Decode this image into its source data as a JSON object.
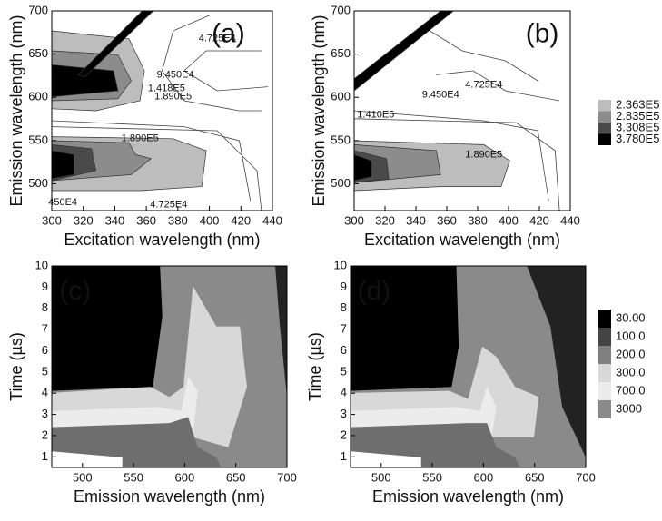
{
  "chart_data": [
    {
      "type": "contour",
      "panel_label": "(a)",
      "x_label": "Excitation wavelength (nm)",
      "y_label": "Emission wavelength (nm)",
      "xlim": [
        300,
        440
      ],
      "xticks": [
        300,
        320,
        340,
        360,
        380,
        400,
        420,
        440
      ],
      "ylim": [
        469,
        700
      ],
      "yticks": [
        500,
        550,
        600,
        650,
        700
      ],
      "contour_labels": [
        "4.725E4",
        "9.450E4",
        "1.418E5",
        "1.890E5",
        "1.890E5",
        "450E4",
        "4.725E4"
      ]
    },
    {
      "type": "contour",
      "panel_label": "(b)",
      "x_label": "Excitation wavelength (nm)",
      "y_label": "Emission wavelength (nm)",
      "xlim": [
        300,
        440
      ],
      "xticks": [
        300,
        320,
        340,
        360,
        380,
        400,
        420,
        440
      ],
      "ylim": [
        469,
        700
      ],
      "yticks": [
        500,
        550,
        600,
        650,
        700
      ],
      "contour_labels": [
        "4.725E4",
        "9.450E4",
        "1.410E5",
        "1.890E5"
      ],
      "colorbar": {
        "levels": [
          {
            "value": 236300,
            "label": "2.363E5"
          },
          {
            "value": 283500,
            "label": "2.835E5"
          },
          {
            "value": 330800,
            "label": "3.308E5"
          },
          {
            "value": 378000,
            "label": "3.780E5"
          }
        ],
        "colors": [
          "#bdbdbd",
          "#8c8c8c",
          "#4a4a4a",
          "#000000"
        ]
      }
    },
    {
      "type": "contour",
      "panel_label": "(c)",
      "x_label": "Emission wavelength (nm)",
      "y_label": "Time (µs)",
      "xlim": [
        470,
        700
      ],
      "xticks": [
        500,
        550,
        600,
        650,
        700
      ],
      "ylim": [
        0.5,
        10
      ],
      "yticks": [
        1,
        2,
        3,
        4,
        5,
        6,
        7,
        8,
        9,
        10
      ]
    },
    {
      "type": "contour",
      "panel_label": "(d)",
      "x_label": "Emission wavelength (nm)",
      "y_label": "Time (µs)",
      "xlim": [
        470,
        700
      ],
      "xticks": [
        500,
        550,
        600,
        650,
        700
      ],
      "ylim": [
        0.5,
        10
      ],
      "yticks": [
        1,
        2,
        3,
        4,
        5,
        6,
        7,
        8,
        9,
        10
      ],
      "colorbar": {
        "levels": [
          {
            "value": 30,
            "label": "30.00"
          },
          {
            "value": 100,
            "label": "100.0"
          },
          {
            "value": 200,
            "label": "200.0"
          },
          {
            "value": 300,
            "label": "300.0"
          },
          {
            "value": 700,
            "label": "700.0"
          },
          3000
        ],
        "colors": [
          "#000000",
          "#444444",
          "#808080",
          "#d8d8d8",
          "#ececec",
          "#8a8a8a"
        ]
      }
    }
  ]
}
